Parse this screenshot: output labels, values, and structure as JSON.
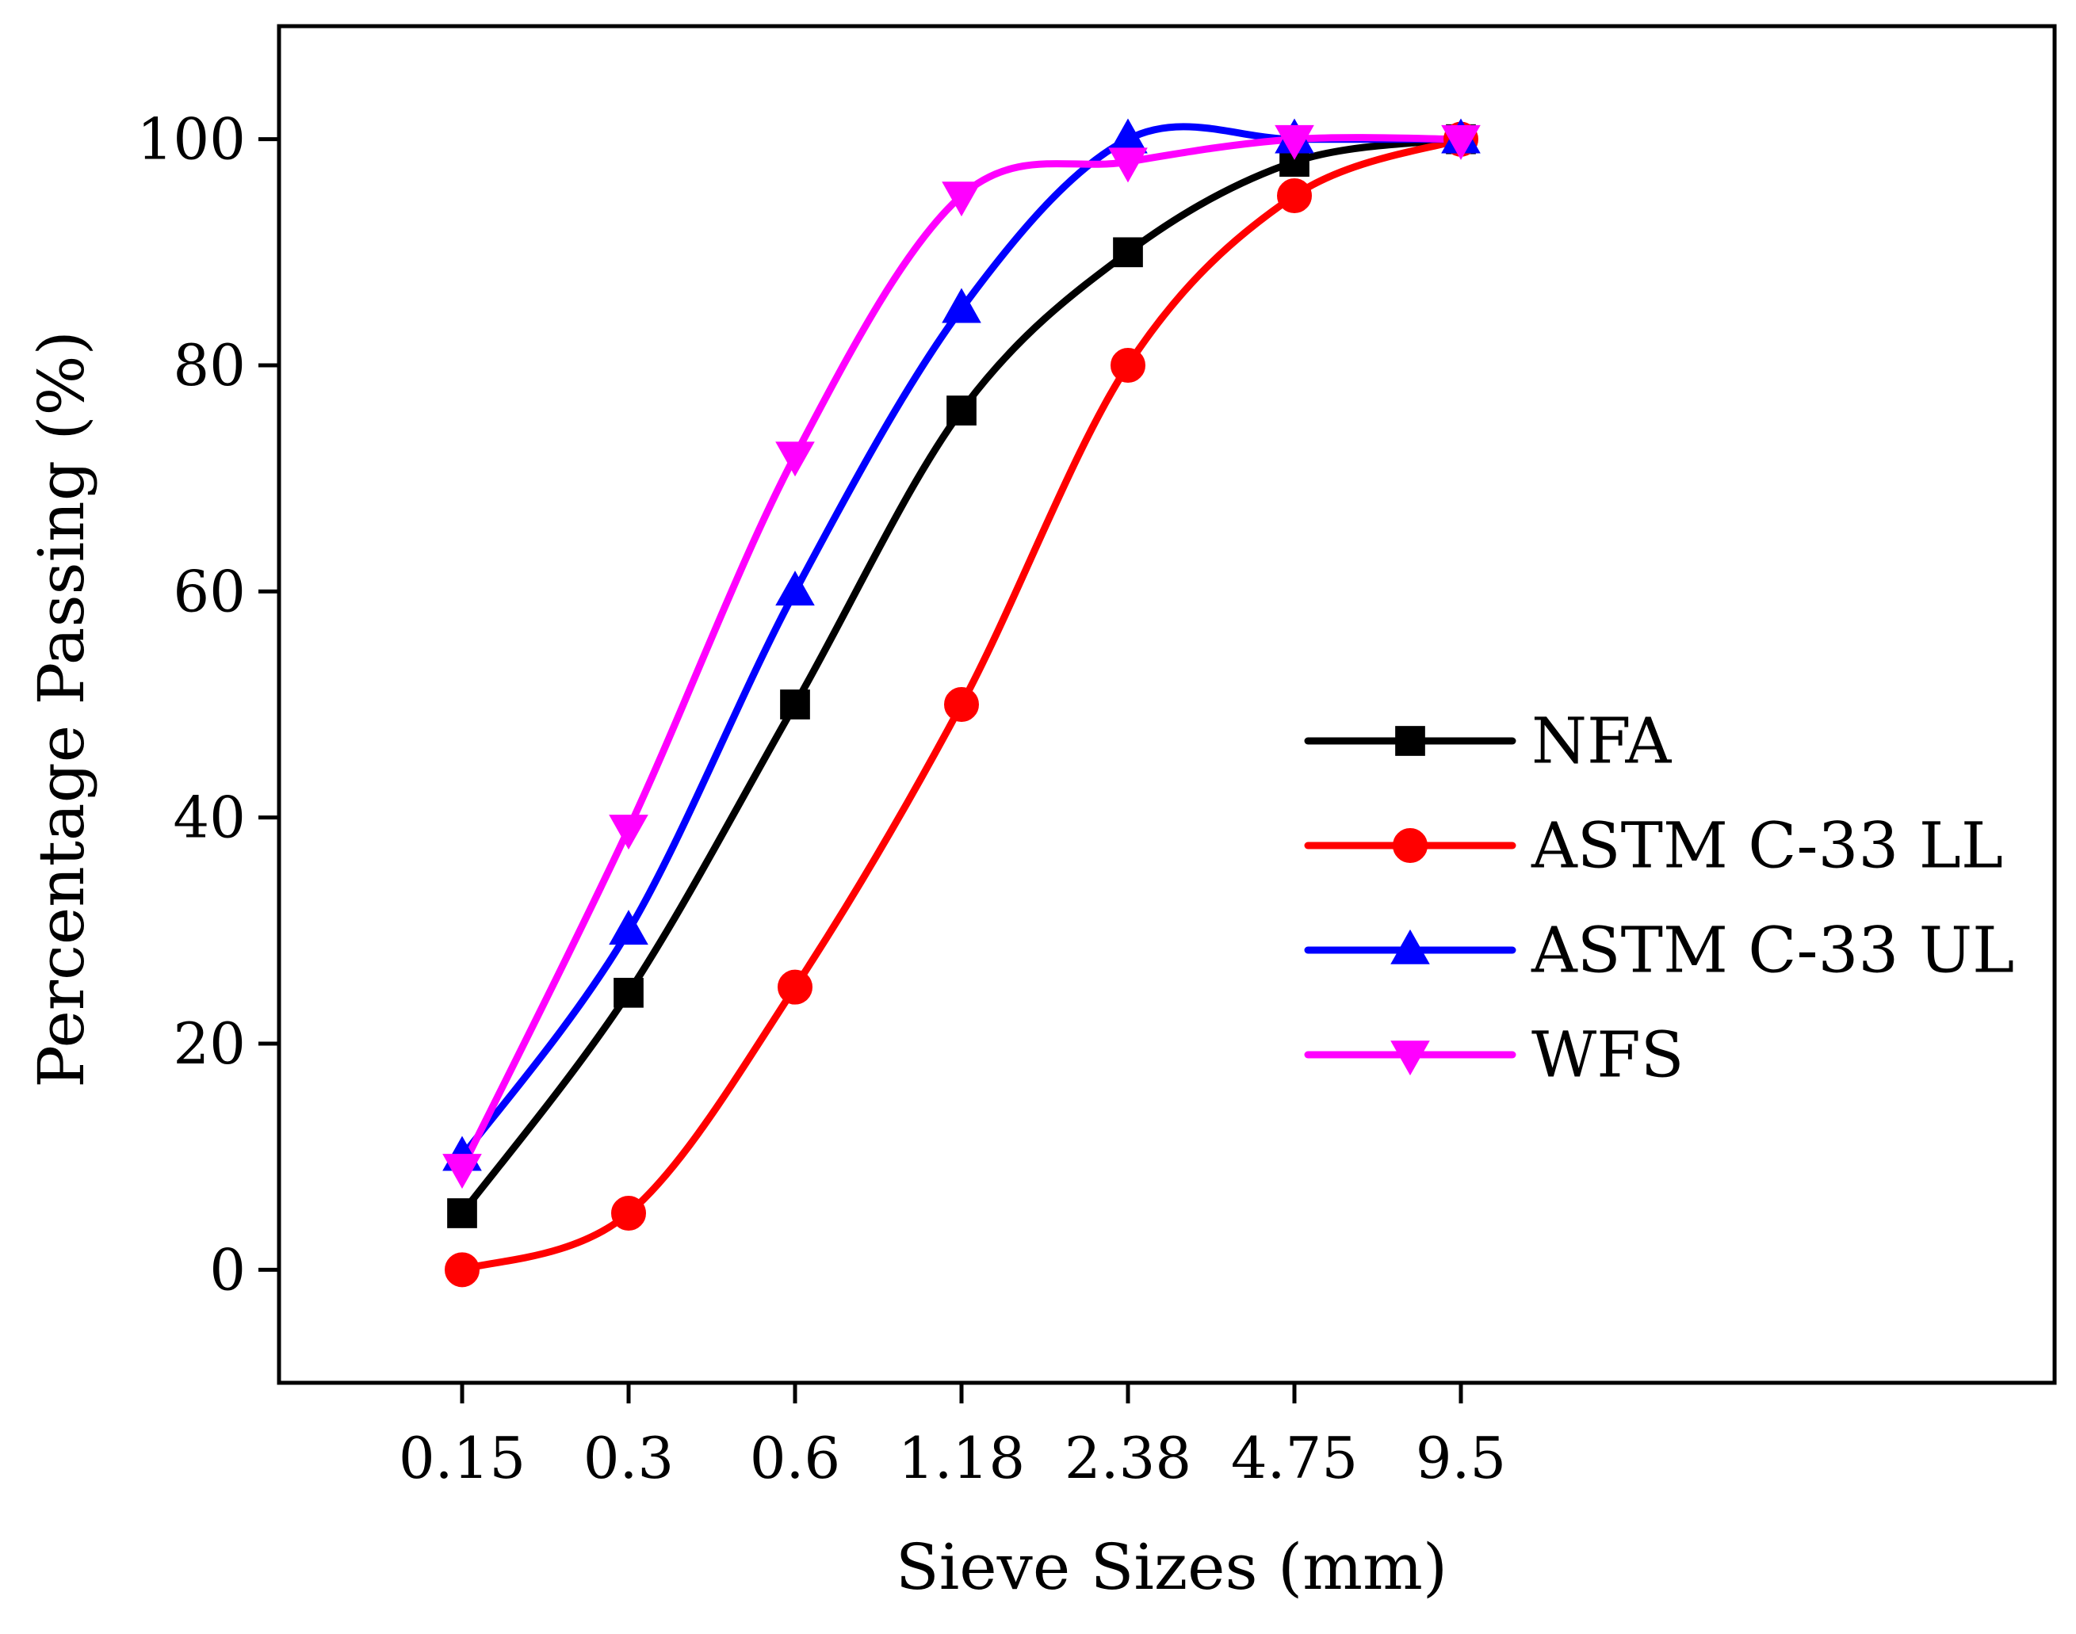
{
  "chart_data": {
    "type": "line",
    "title": "",
    "xlabel": "Sieve Sizes (mm)",
    "ylabel": "Percentage Passing (%)",
    "categories": [
      "0.15",
      "0.3",
      "0.6",
      "1.18",
      "2.38",
      "4.75",
      "9.5"
    ],
    "ylim": [
      -10,
      110
    ],
    "yticks": [
      0,
      20,
      40,
      60,
      80,
      100
    ],
    "ytick_labels": [
      "0",
      "20",
      "40",
      "60",
      "80",
      "100"
    ],
    "grid": false,
    "legend_position": "center-right",
    "series": [
      {
        "name": "NFA",
        "marker": "square",
        "color": "#000000",
        "values": [
          5,
          24.5,
          50,
          76,
          90,
          98,
          100
        ]
      },
      {
        "name": "ASTM C-33 LL",
        "marker": "circle",
        "color": "#ff0000",
        "values": [
          0,
          5,
          25,
          50,
          80,
          95,
          100
        ]
      },
      {
        "name": "ASTM C-33 UL",
        "marker": "triangle-up",
        "color": "#0000ff",
        "values": [
          10,
          30,
          60,
          85,
          100,
          100,
          100
        ]
      },
      {
        "name": "WFS",
        "marker": "triangle-down",
        "color": "#ff00ff",
        "values": [
          9,
          39,
          72,
          95,
          98,
          100,
          100
        ]
      }
    ]
  }
}
